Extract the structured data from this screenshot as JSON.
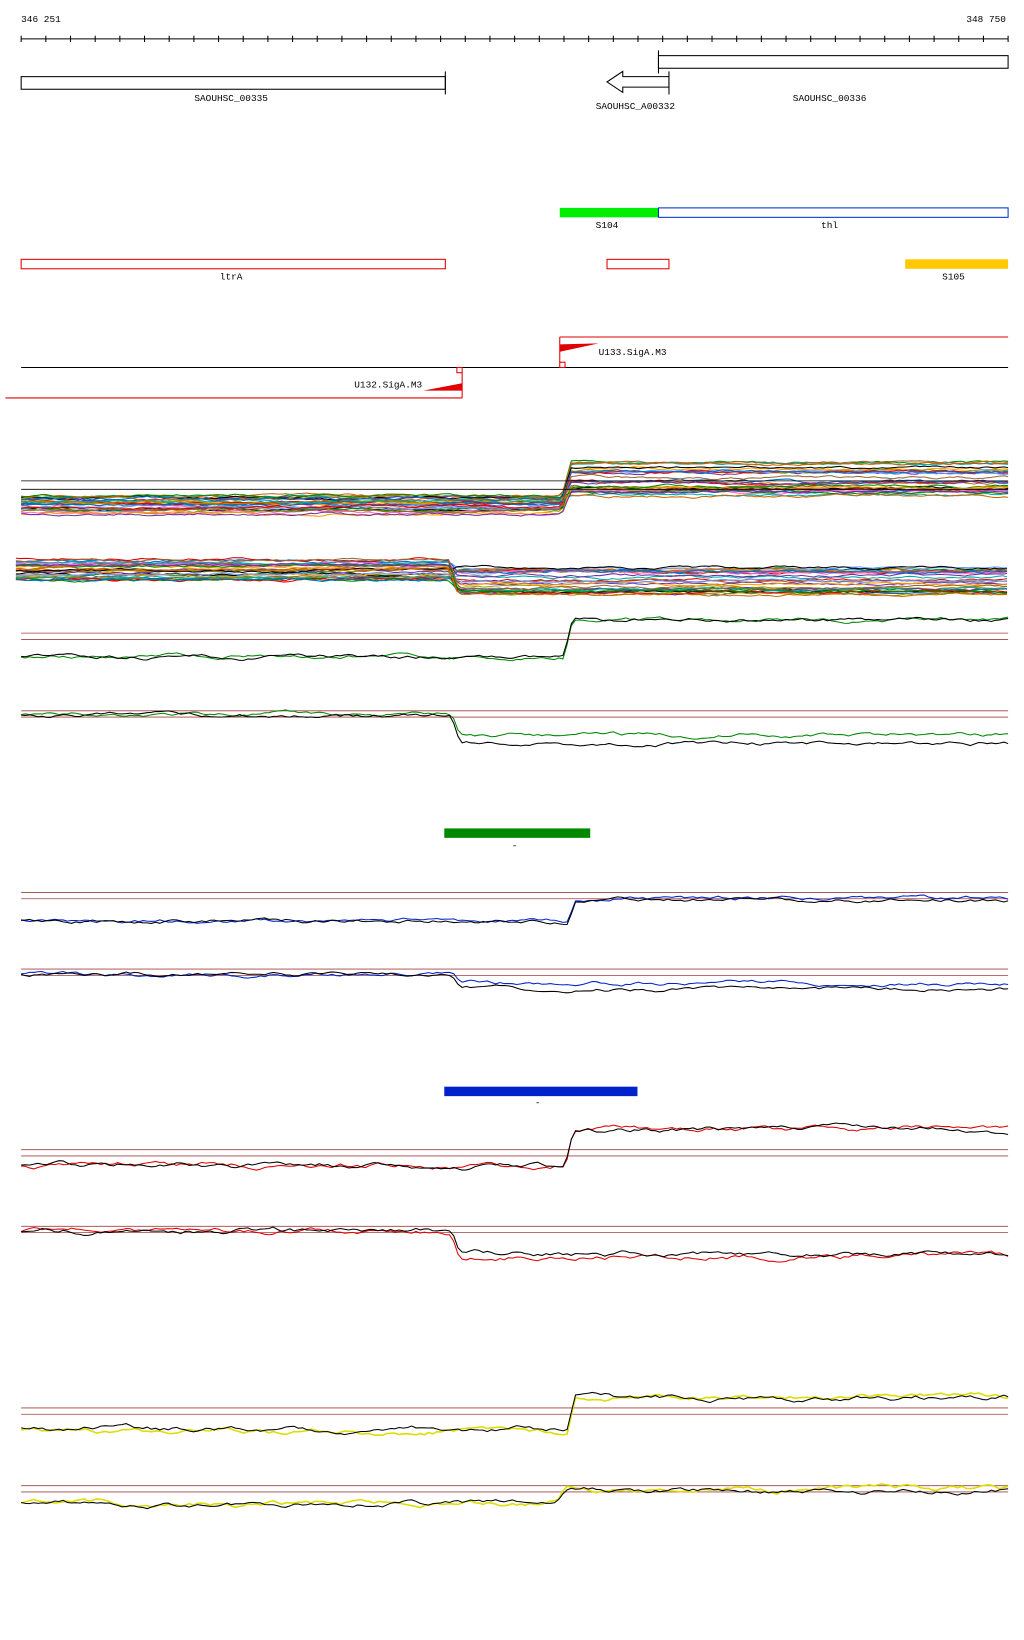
{
  "ruler": {
    "start": "346 251",
    "end": "348 750"
  },
  "genes": [
    "SAOUHSC_00335",
    "SAOUHSC_A00332",
    "SAOUHSC_00336"
  ],
  "features": [
    "S104",
    "thl",
    "ltrA",
    "S105"
  ],
  "promoters": [
    "U133.SigA.M3",
    "U132.SigA.M3"
  ],
  "bars": [
    "-",
    "-"
  ]
}
